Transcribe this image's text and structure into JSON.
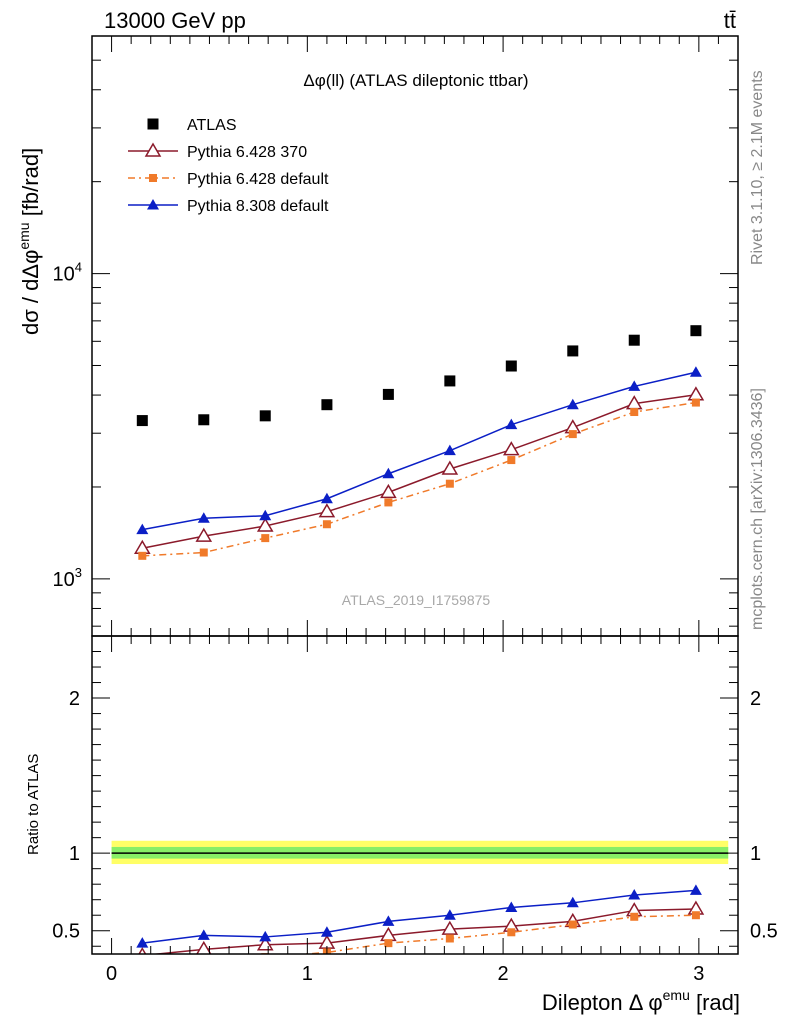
{
  "header": {
    "energy_label": "13000 GeV pp",
    "process_label": "tt̄"
  },
  "side_labels": {
    "rivet": "Rivet 3.1.10, ≥ 2.1M events",
    "source": "mcplots.cern.ch [arXiv:1306.3436]"
  },
  "chart_data": [
    {
      "type": "line",
      "title": "Δφ(ll) (ATLAS dileptonic ttbar)",
      "analysis_label": "ATLAS_2019_I1759875",
      "ylabel": "dσ / dΔφ^emu [fb/rad]",
      "ylabel_superscript": "emu",
      "yscale": "log",
      "ylim": [
        650,
        60000
      ],
      "xlim": [
        -0.1,
        3.2
      ],
      "yticks_labeled": [
        {
          "value": 1000,
          "label": "10",
          "exp": "3"
        },
        {
          "value": 10000,
          "label": "10",
          "exp": "4"
        }
      ],
      "legend_position": "top-left",
      "x": [
        0.157,
        0.471,
        0.785,
        1.1,
        1.414,
        1.728,
        2.042,
        2.356,
        2.67,
        2.985
      ],
      "series": [
        {
          "name": "ATLAS",
          "marker": "square",
          "color": "#000000",
          "values": [
            3300,
            3320,
            3420,
            3720,
            4020,
            4450,
            4980,
            5580,
            6050,
            6500
          ]
        },
        {
          "name": "Pythia 6.428 370",
          "marker": "open-triangle",
          "line": "solid",
          "color": "#8b1a2b",
          "values": [
            1260,
            1380,
            1490,
            1660,
            1920,
            2290,
            2650,
            3130,
            3750,
            4010
          ]
        },
        {
          "name": "Pythia 6.428 default",
          "marker": "small-square",
          "line": "dashdot",
          "color": "#f07a2a",
          "values": [
            1190,
            1220,
            1360,
            1510,
            1780,
            2050,
            2450,
            2980,
            3520,
            3780
          ]
        },
        {
          "name": "Pythia 8.308 default",
          "marker": "filled-triangle",
          "line": "solid",
          "color": "#0b1fc6",
          "values": [
            1450,
            1580,
            1610,
            1830,
            2210,
            2630,
            3200,
            3720,
            4270,
            4750
          ]
        }
      ]
    },
    {
      "type": "line",
      "ylabel": "Ratio to ATLAS",
      "xlabel": "Dilepton Δ φ^emu [rad]",
      "xlabel_main": "Dilepton Δ φ",
      "xlabel_superscript": "emu",
      "xlabel_unit": "[rad]",
      "ylim": [
        0.35,
        2.4
      ],
      "yticks": [
        0.5,
        1,
        2
      ],
      "ytick_labels": [
        "0.5",
        "1",
        "2"
      ],
      "xticks": [
        0,
        1,
        2,
        3
      ],
      "xtick_labels": [
        "0",
        "1",
        "2",
        "3"
      ],
      "xlim": [
        -0.1,
        3.2
      ],
      "x": [
        0.157,
        0.471,
        0.785,
        1.1,
        1.414,
        1.728,
        2.042,
        2.356,
        2.67,
        2.985
      ],
      "reference_line": 1.0,
      "uncertainty_bands": [
        {
          "color": "#ffff66",
          "lo": 0.93,
          "hi": 1.08
        },
        {
          "color": "#88ee66",
          "lo": 0.965,
          "hi": 1.04
        }
      ],
      "series": [
        {
          "name": "Pythia 6.428 370",
          "marker": "open-triangle",
          "line": "solid",
          "color": "#8b1a2b",
          "values": [
            0.34,
            0.38,
            0.41,
            0.42,
            0.47,
            0.51,
            0.53,
            0.56,
            0.63,
            0.64
          ]
        },
        {
          "name": "Pythia 6.428 default",
          "marker": "small-square",
          "line": "dashdot",
          "color": "#f07a2a",
          "values": [
            0.3,
            0.31,
            0.33,
            0.36,
            0.42,
            0.45,
            0.49,
            0.54,
            0.59,
            0.6
          ]
        },
        {
          "name": "Pythia 8.308 default",
          "marker": "filled-triangle",
          "line": "solid",
          "color": "#0b1fc6",
          "values": [
            0.42,
            0.47,
            0.46,
            0.49,
            0.56,
            0.6,
            0.65,
            0.68,
            0.73,
            0.76
          ]
        }
      ]
    }
  ]
}
